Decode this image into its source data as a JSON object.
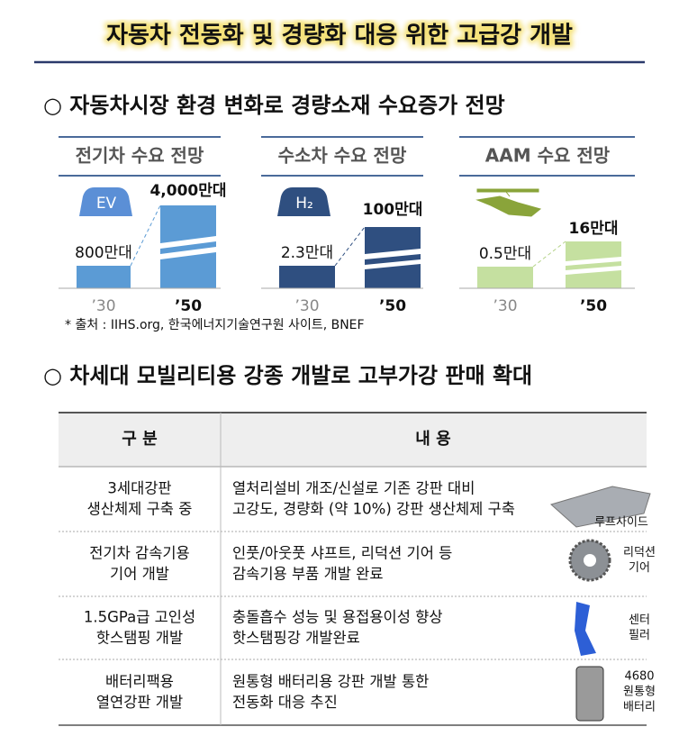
{
  "header": {
    "title": "자동차 전동화 및 경량화 대응 위한 고급강 개발"
  },
  "section1": {
    "heading": "○ 자동차시장 환경 변화로 경량소재 수요증가 전망",
    "panels": [
      {
        "title": "전기차 수요 전망",
        "icon": "EV",
        "bars": [
          {
            "year": "’30",
            "label": "800만대"
          },
          {
            "year": "’50",
            "label": "4,000만대"
          }
        ]
      },
      {
        "title": "수소차 수요 전망",
        "icon": "H₂",
        "bars": [
          {
            "year": "’30",
            "label": "2.3만대"
          },
          {
            "year": "’50",
            "label": "100만대"
          }
        ]
      },
      {
        "title": "AAM 수요 전망",
        "bars": [
          {
            "year": "’30",
            "label": "0.5만대"
          },
          {
            "year": "’50",
            "label": "16만대"
          }
        ]
      }
    ],
    "source": "* 출처 : IIHS.org, 한국에너지기술연구원 사이트, BNEF"
  },
  "section2": {
    "heading": "○ 차세대 모빌리티용 강종 개발로 고부가강 판매 확대",
    "table": {
      "headers": [
        "구 분",
        "내 용"
      ],
      "rows": [
        {
          "category": [
            "3세대강판",
            "생산체제 구축 중"
          ],
          "content": [
            "열처리설비 개조/신설로 기존 강판 대비",
            "고강도, 경량화 (약 10%) 강판 생산체제 구축"
          ],
          "caption": [
            "루프사이드"
          ]
        },
        {
          "category": [
            "전기차 감속기용",
            "기어 개발"
          ],
          "content": [
            "인풋/아웃풋 샤프트, 리덕션 기어 등",
            "감속기용 부품 개발 완료"
          ],
          "caption": [
            "리덕션",
            "기어"
          ]
        },
        {
          "category": [
            "1.5GPa급 고인성",
            "핫스탬핑 개발"
          ],
          "content": [
            "충돌흡수 성능 및 용접용이성 향상",
            "핫스탬핑강 개발완료"
          ],
          "caption": [
            "센터",
            "필러"
          ]
        },
        {
          "category": [
            "배터리팩용",
            "열연강판 개발"
          ],
          "content": [
            "원통형 배터리용 강판 개발 통한",
            "전동화 대응 추진"
          ],
          "caption": [
            "4680",
            "원통형",
            "배터리"
          ]
        }
      ]
    }
  }
}
